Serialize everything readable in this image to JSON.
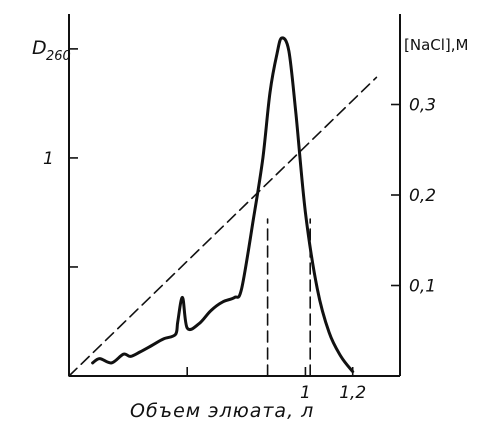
{
  "chart_data": {
    "type": "line",
    "left_axis_label": "D",
    "left_axis_label_sub": "260",
    "right_axis_label": "[NaCl],M",
    "xlabel": "Объем элюата, л",
    "x_ticks": [
      {
        "value": 0.5,
        "label": ""
      },
      {
        "value": 1.0,
        "label": "1"
      },
      {
        "value": 1.2,
        "label": "1,2"
      }
    ],
    "left_ticks": [
      {
        "value": 0.5,
        "label": ""
      },
      {
        "value": 1.0,
        "label": "1"
      },
      {
        "value": 1.5,
        "label": ""
      }
    ],
    "right_ticks": [
      {
        "value": 0.1,
        "label": "0,1"
      },
      {
        "value": 0.2,
        "label": "0,2"
      },
      {
        "value": 0.3,
        "label": "0,3"
      }
    ],
    "xlim": [
      0,
      1.4
    ],
    "left_ylim": [
      0,
      1.66
    ],
    "right_ylim": [
      0,
      0.4
    ],
    "grid": false,
    "series": [
      {
        "style": "solid",
        "axis": "left",
        "x": [
          0.1,
          0.13,
          0.18,
          0.23,
          0.26,
          0.3,
          0.35,
          0.4,
          0.45,
          0.46,
          0.48,
          0.5,
          0.55,
          0.6,
          0.65,
          0.7,
          0.73,
          0.78,
          0.82,
          0.85,
          0.88,
          0.9,
          0.93,
          0.96,
          1.0,
          1.05,
          1.1,
          1.15,
          1.2
        ],
        "values": [
          0.06,
          0.08,
          0.06,
          0.1,
          0.09,
          0.11,
          0.14,
          0.17,
          0.19,
          0.25,
          0.36,
          0.22,
          0.24,
          0.3,
          0.34,
          0.36,
          0.4,
          0.72,
          1.0,
          1.3,
          1.48,
          1.55,
          1.49,
          1.2,
          0.75,
          0.4,
          0.2,
          0.09,
          0.02
        ]
      },
      {
        "style": "dashed",
        "axis": "right",
        "x": [
          0.0,
          1.3
        ],
        "values": [
          0.0,
          0.33
        ]
      },
      {
        "style": "dashed",
        "axis": "left",
        "x": [
          0.84,
          0.84
        ],
        "values": [
          0.0,
          0.72
        ]
      },
      {
        "style": "dashed",
        "axis": "left",
        "x": [
          1.02,
          1.02
        ],
        "values": [
          0.0,
          0.72
        ]
      }
    ]
  }
}
